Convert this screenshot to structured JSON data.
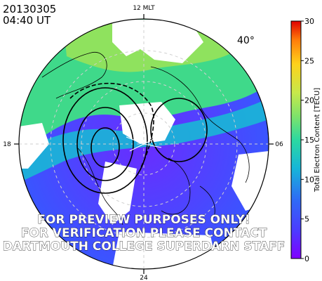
{
  "header": {
    "date": "20130305",
    "time": "04:40 UT",
    "latitude_label": "40°"
  },
  "mlt_labels": {
    "top": "12 MLT",
    "bottom": "24",
    "left": "18",
    "right": "06"
  },
  "watermark": [
    "FOR PREVIEW PURPOSES ONLY!",
    "FOR VERIFICATION PLEASE CONTACT",
    "DARTMOUTH COLLEGE SUPERDARN STAFF"
  ],
  "colorbar": {
    "title": "Total Electron Content [TECU]",
    "min": 0,
    "max": 30,
    "ticks": [
      "0",
      "5",
      "10",
      "15",
      "20",
      "25",
      "30"
    ]
  },
  "colors": {
    "tec_scale": [
      "#8000ff",
      "#4b3cff",
      "#2e6cf5",
      "#16b6d8",
      "#2cd9a0",
      "#7fe36a",
      "#c8e84a",
      "#ffd21a",
      "#ff7d0a",
      "#e00000"
    ]
  }
}
